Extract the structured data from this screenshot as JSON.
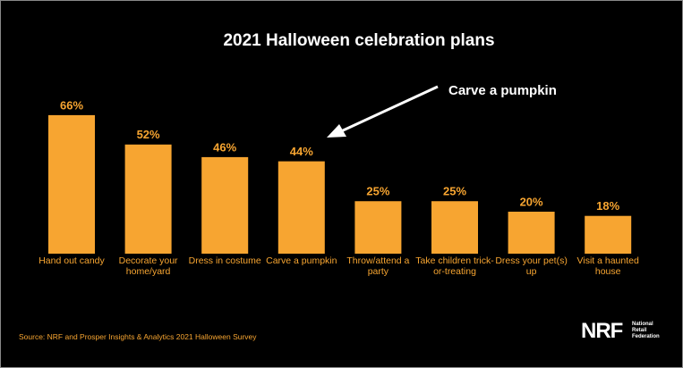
{
  "chart_data": {
    "type": "bar",
    "title": "2021 Halloween celebration plans",
    "annotation": "Carve a pumpkin",
    "categories": [
      "Hand out candy",
      "Decorate your home/yard",
      "Dress in costume",
      "Carve a pumpkin",
      "Throw/attend a party",
      "Take children trick-or-treating",
      "Dress your pet(s) up",
      "Visit a haunted house"
    ],
    "values": [
      66,
      52,
      46,
      44,
      25,
      25,
      20,
      18
    ],
    "value_labels": [
      "66%",
      "52%",
      "46%",
      "44%",
      "25%",
      "25%",
      "20%",
      "18%"
    ],
    "color": "#f7a531",
    "source": "Source: NRF and Prosper Insights & Analytics 2021 Halloween Survey",
    "logo_mark": "NRF",
    "logo_name": "National Retail Federation"
  }
}
